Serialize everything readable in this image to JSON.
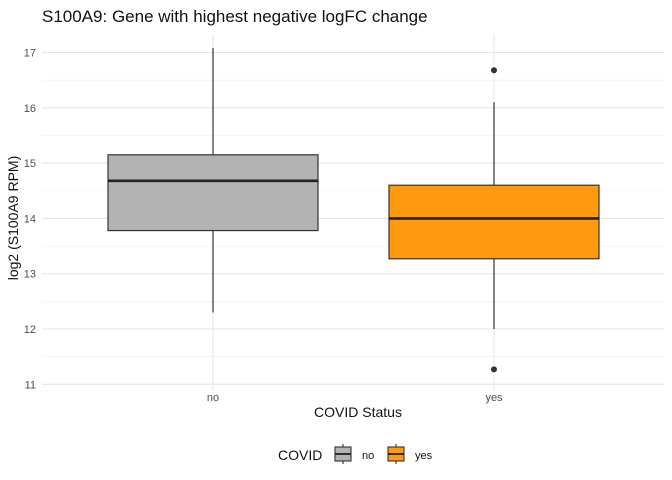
{
  "chart_data": {
    "type": "boxplot",
    "title": "S100A9: Gene with highest negative logFC change",
    "xlabel": "COVID Status",
    "ylabel": "log2 (S100A9 RPM)",
    "ylim": [
      11,
      17
    ],
    "yticks": [
      11,
      12,
      13,
      14,
      15,
      16,
      17
    ],
    "grid": true,
    "categories": [
      "no",
      "yes"
    ],
    "boxes": [
      {
        "category": "no",
        "whisker_low": 12.3,
        "q1": 13.78,
        "median": 14.68,
        "q3": 15.15,
        "whisker_high": 17.08,
        "outliers": [],
        "color": "#b3b3b3"
      },
      {
        "category": "yes",
        "whisker_low": 12.0,
        "q1": 13.27,
        "median": 14.0,
        "q3": 14.6,
        "whisker_high": 16.1,
        "outliers": [
          16.68,
          11.27
        ],
        "color": "#ff9a0f"
      }
    ],
    "legend": {
      "title": "COVID",
      "position": "bottom",
      "entries": [
        {
          "label": "no",
          "color": "#b3b3b3"
        },
        {
          "label": "yes",
          "color": "#ff9a0f"
        }
      ]
    }
  }
}
